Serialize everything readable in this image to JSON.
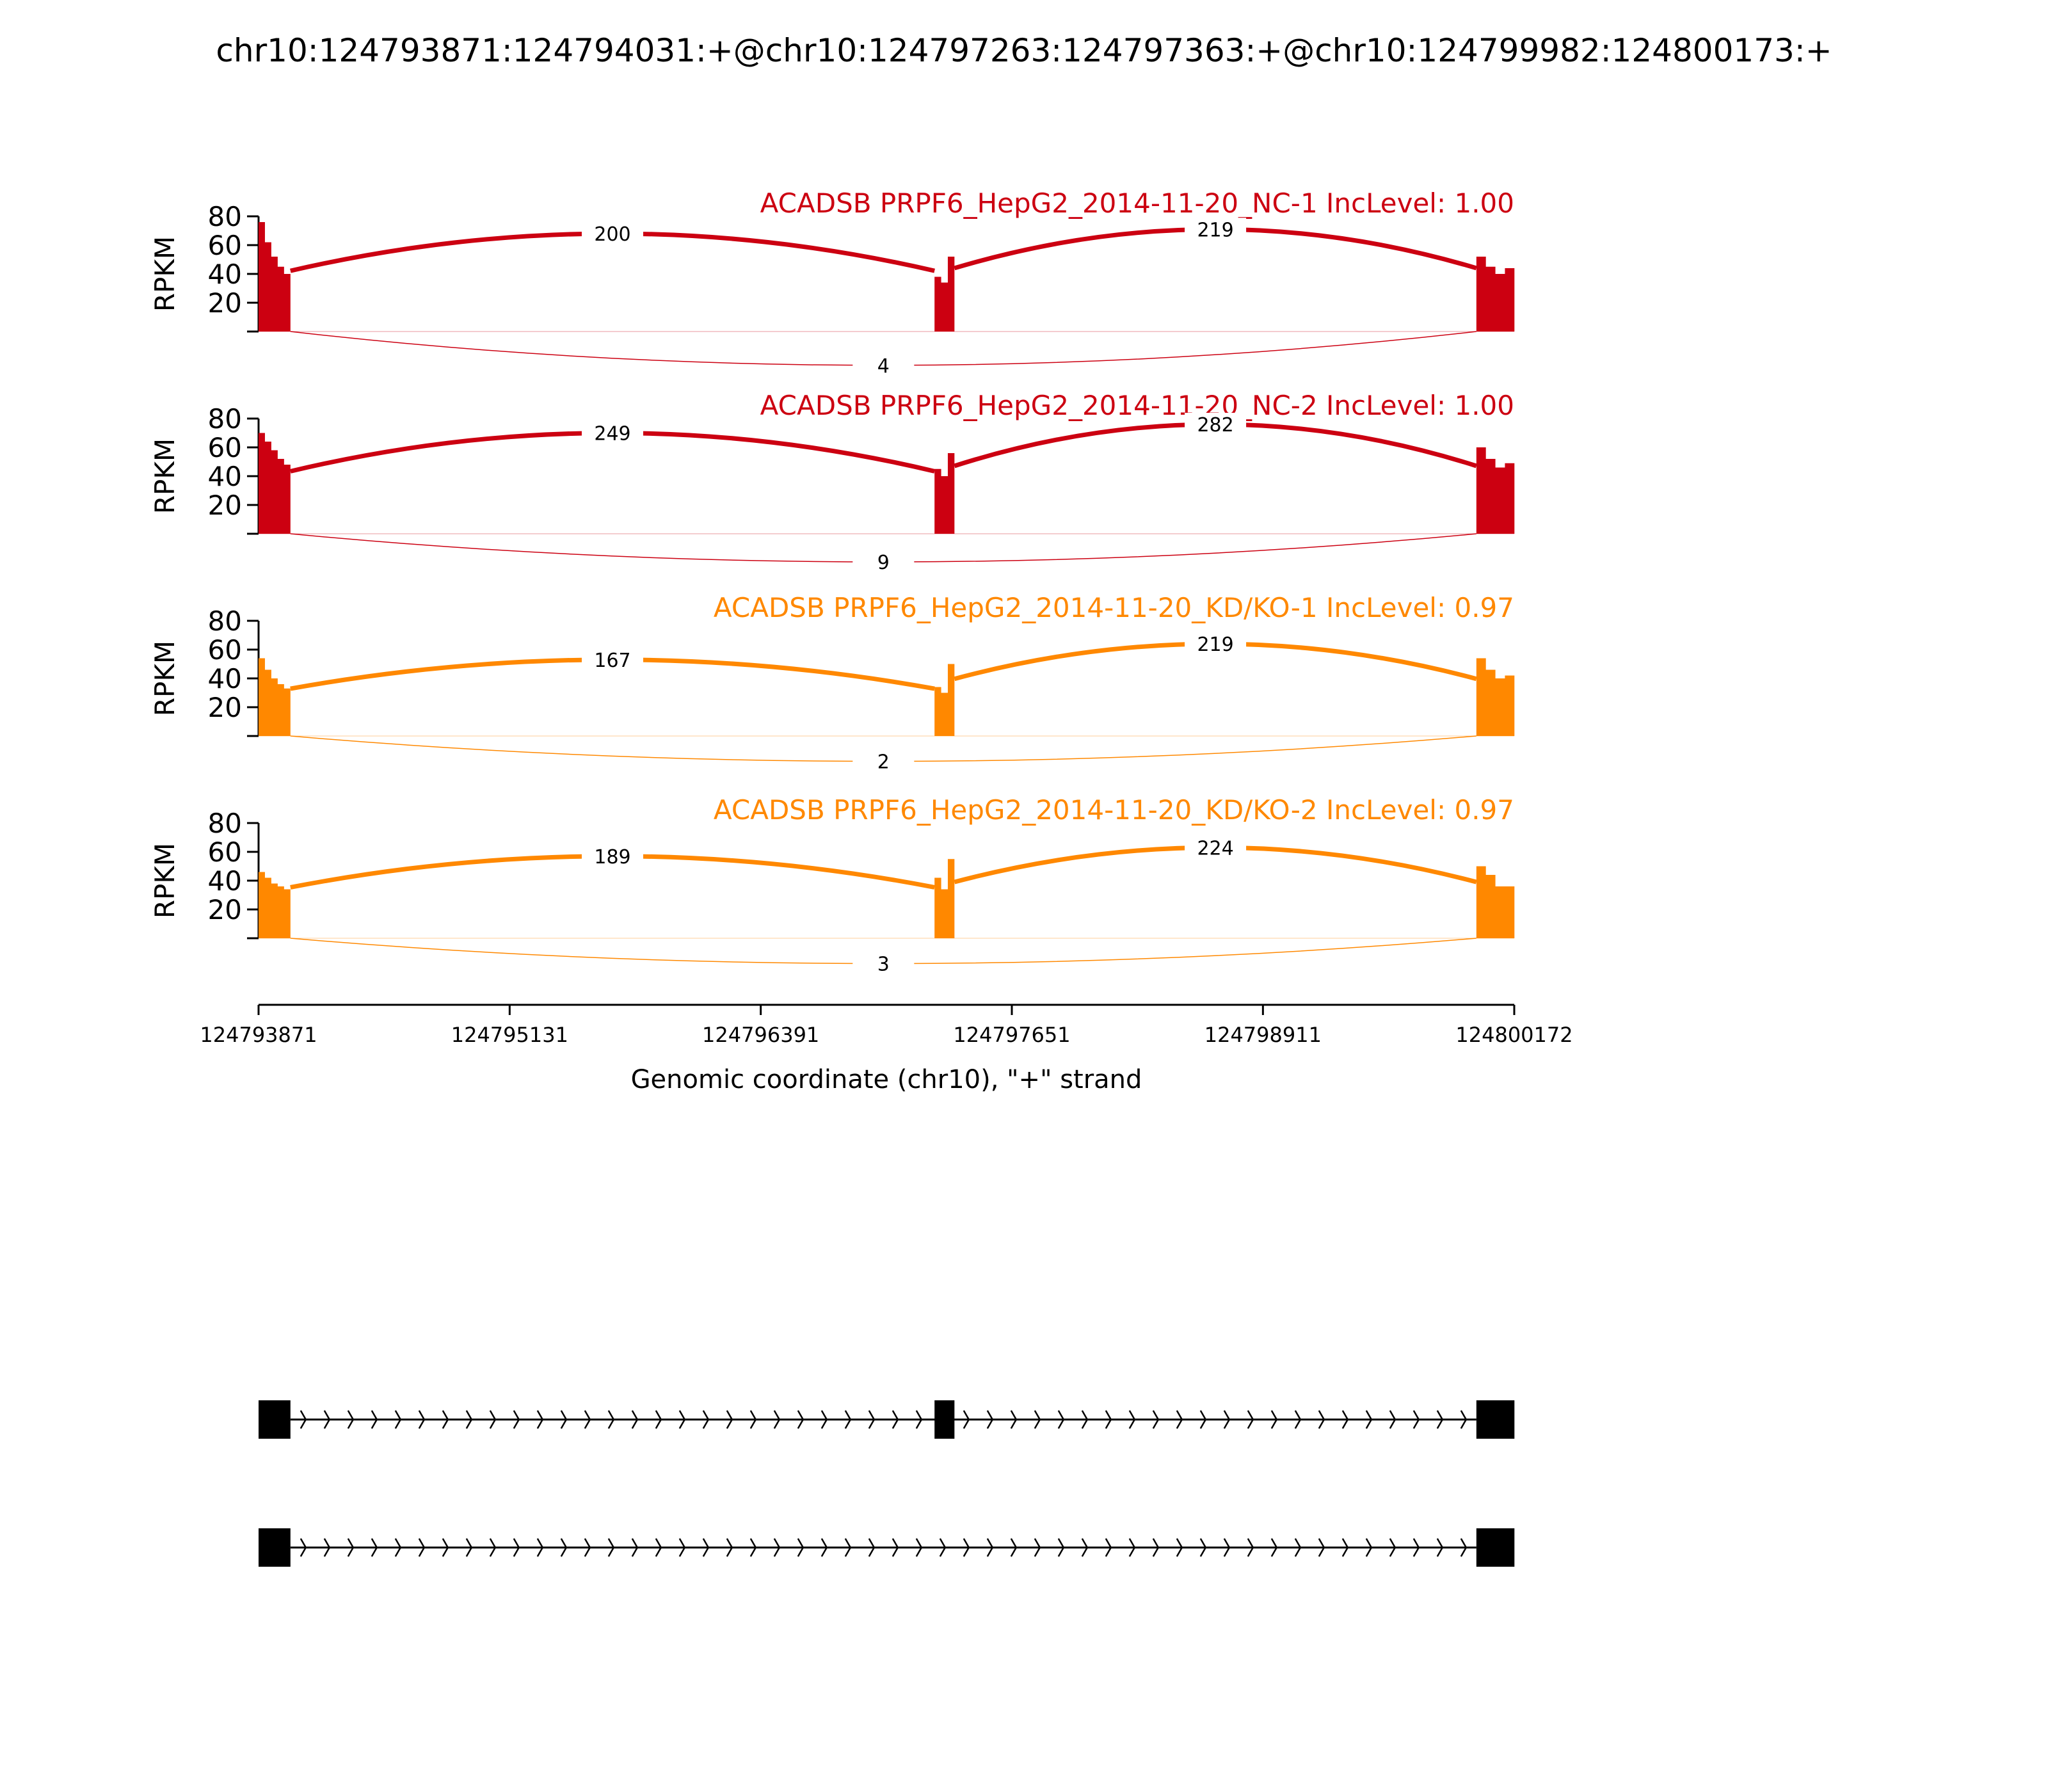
{
  "title": "chr10:124793871:124794031:+@chr10:124797263:124797363:+@chr10:124799982:124800173:+",
  "chart_data": {
    "type": "sashimi",
    "title": "chr10:124793871:124794031:+@chr10:124797263:124797363:+@chr10:124799982:124800173:+",
    "xlabel": "Genomic coordinate (chr10), \"+\" strand",
    "ylabel": "RPKM",
    "xlim": [
      124793871,
      124800172
    ],
    "ylim": [
      0,
      80
    ],
    "x_ticks": [
      "124793871",
      "124795131",
      "124796391",
      "124797651",
      "124798911",
      "124800172"
    ],
    "y_ticks": [
      "20",
      "40",
      "60",
      "80"
    ],
    "exons": [
      [
        124793871,
        124794031
      ],
      [
        124797263,
        124797363
      ],
      [
        124799982,
        124800173
      ]
    ],
    "tracks": [
      {
        "name": "ACADSB PRPF6_HepG2_2014-11-20_NC-1 IncLevel: 1.00",
        "color": "#cc0011",
        "exon_levels": [
          [
            76,
            62,
            52,
            45,
            40
          ],
          [
            38,
            34,
            52
          ],
          [
            52,
            45,
            40,
            44
          ]
        ],
        "junctions": [
          {
            "from": 124794031,
            "to": 124797263,
            "count": "200",
            "side": "above",
            "peak": 68
          },
          {
            "from": 124797363,
            "to": 124799982,
            "count": "219",
            "side": "above",
            "peak": 71
          },
          {
            "from": 124794031,
            "to": 124799982,
            "count": "4",
            "side": "below",
            "peak": 24
          }
        ]
      },
      {
        "name": "ACADSB PRPF6_HepG2_2014-11-20_NC-2 IncLevel: 1.00",
        "color": "#cc0011",
        "exon_levels": [
          [
            70,
            64,
            58,
            52,
            48
          ],
          [
            45,
            40,
            56
          ],
          [
            60,
            52,
            46,
            49
          ]
        ],
        "junctions": [
          {
            "from": 124794031,
            "to": 124797263,
            "count": "249",
            "side": "above",
            "peak": 70
          },
          {
            "from": 124797363,
            "to": 124799982,
            "count": "282",
            "side": "above",
            "peak": 76
          },
          {
            "from": 124794031,
            "to": 124799982,
            "count": "9",
            "side": "below",
            "peak": 20
          }
        ]
      },
      {
        "name": "ACADSB PRPF6_HepG2_2014-11-20_KD/KO-1 IncLevel: 0.97",
        "color": "#ff8800",
        "exon_levels": [
          [
            54,
            46,
            40,
            36,
            33
          ],
          [
            34,
            30,
            50
          ],
          [
            54,
            46,
            40,
            42
          ]
        ],
        "junctions": [
          {
            "from": 124794031,
            "to": 124797263,
            "count": "167",
            "side": "above",
            "peak": 53
          },
          {
            "from": 124797363,
            "to": 124799982,
            "count": "219",
            "side": "above",
            "peak": 64
          },
          {
            "from": 124794031,
            "to": 124799982,
            "count": "2",
            "side": "below",
            "peak": 18
          }
        ]
      },
      {
        "name": "ACADSB PRPF6_HepG2_2014-11-20_KD/KO-2 IncLevel: 0.97",
        "color": "#ff8800",
        "exon_levels": [
          [
            46,
            42,
            38,
            36,
            34
          ],
          [
            42,
            34,
            55
          ],
          [
            50,
            44,
            36,
            36
          ]
        ],
        "junctions": [
          {
            "from": 124794031,
            "to": 124797263,
            "count": "189",
            "side": "above",
            "peak": 57
          },
          {
            "from": 124797363,
            "to": 124799982,
            "count": "224",
            "side": "above",
            "peak": 63
          },
          {
            "from": 124794031,
            "to": 124799982,
            "count": "3",
            "side": "below",
            "peak": 18
          }
        ]
      }
    ],
    "isoforms": [
      {
        "exons": [
          [
            124793871,
            124794031
          ],
          [
            124797263,
            124797363
          ],
          [
            124799982,
            124800173
          ]
        ]
      },
      {
        "exons": [
          [
            124793871,
            124794031
          ],
          [
            124799982,
            124800173
          ]
        ]
      }
    ]
  }
}
